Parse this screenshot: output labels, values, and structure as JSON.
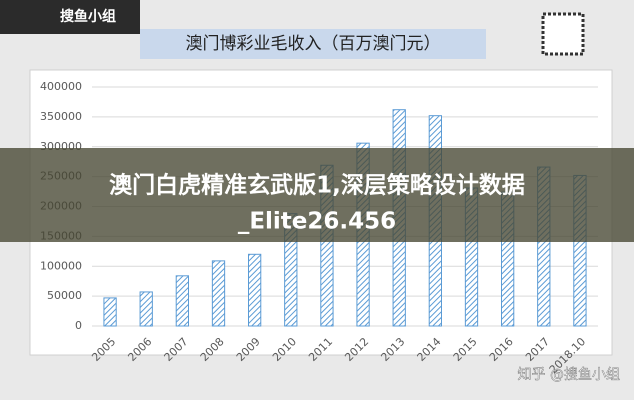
{
  "chart_data": {
    "type": "bar",
    "title": "澳门博彩业毛收入（百万澳门元）",
    "categories": [
      "2005",
      "2006",
      "2007",
      "2008",
      "2009",
      "2010",
      "2011",
      "2012",
      "2013",
      "2014",
      "2015",
      "2016",
      "2017",
      "2018.10"
    ],
    "values": [
      47000,
      57000,
      84000,
      109000,
      120000,
      188000,
      269000,
      306000,
      362000,
      352000,
      231000,
      224000,
      266000,
      252000
    ],
    "color": "#5b9bd5",
    "ylim": [
      0,
      400000
    ],
    "yticks": [
      0,
      50000,
      100000,
      150000,
      200000,
      250000,
      300000,
      350000,
      400000
    ],
    "grid": true
  },
  "logo": "搜鱼小组",
  "headline": [
    "澳门白虎精准玄武版1,深层策略设计数据",
    "_Elite26.456"
  ],
  "watermark": "知乎 @搜鱼小组"
}
